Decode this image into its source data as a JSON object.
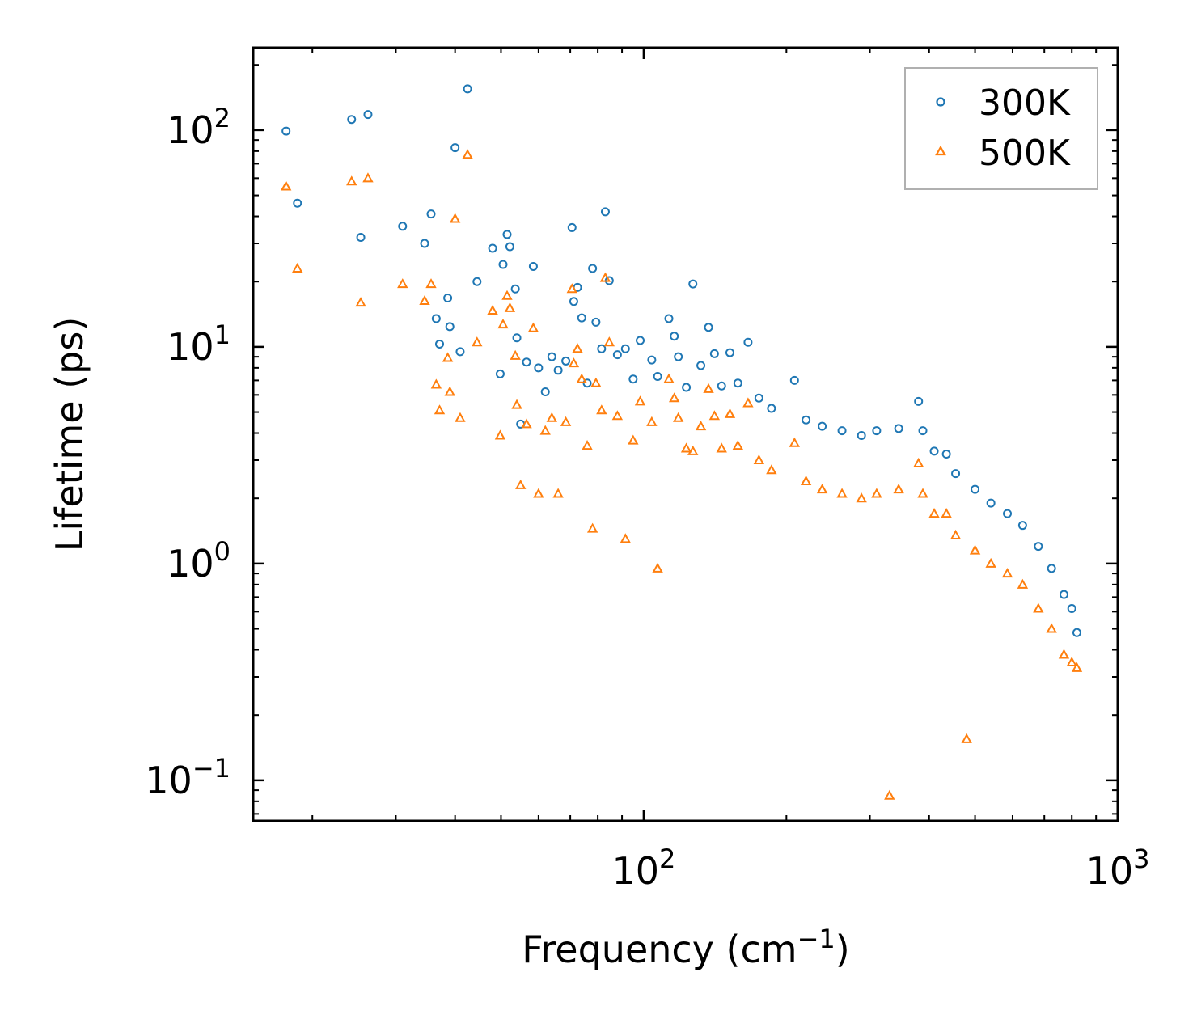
{
  "chart_data": {
    "type": "scatter",
    "title": "",
    "xlabel": "Frequency (cm",
    "xlabel_sup": "−1",
    "xlabel_end": ")",
    "ylabel": "Lifetime (ps)",
    "xscale": "log",
    "yscale": "log",
    "xlim": [
      15,
      1000
    ],
    "ylim": [
      0.065,
      240
    ],
    "x_ticks": [
      {
        "value": 100,
        "base": "10",
        "exp": "2"
      },
      {
        "value": 1000,
        "base": "10",
        "exp": "3"
      }
    ],
    "y_ticks": [
      {
        "value": 0.1,
        "base": "10",
        "exp": "−1"
      },
      {
        "value": 1,
        "base": "10",
        "exp": "0"
      },
      {
        "value": 10,
        "base": "10",
        "exp": "1"
      },
      {
        "value": 100,
        "base": "10",
        "exp": "2"
      }
    ],
    "legend_position": "top-right",
    "series": [
      {
        "name": "300K",
        "color": "#1f77b4",
        "marker": "circle",
        "points": [
          [
            17.6,
            99
          ],
          [
            18.6,
            46
          ],
          [
            24.2,
            112
          ],
          [
            25.3,
            32
          ],
          [
            26.2,
            118
          ],
          [
            31,
            36
          ],
          [
            34.5,
            30
          ],
          [
            35.6,
            41
          ],
          [
            36.5,
            13.5
          ],
          [
            37.1,
            10.3
          ],
          [
            38.6,
            16.8
          ],
          [
            39,
            12.4
          ],
          [
            40,
            83
          ],
          [
            41,
            9.5
          ],
          [
            42.5,
            155
          ],
          [
            44.5,
            20
          ],
          [
            48,
            28.5
          ],
          [
            49.8,
            7.5
          ],
          [
            50.5,
            24
          ],
          [
            51.5,
            33
          ],
          [
            52.2,
            29
          ],
          [
            53.6,
            18.5
          ],
          [
            54,
            11
          ],
          [
            55,
            4.4
          ],
          [
            56.6,
            8.5
          ],
          [
            58.5,
            23.5
          ],
          [
            60,
            8
          ],
          [
            62,
            6.2
          ],
          [
            64,
            9
          ],
          [
            66,
            7.8
          ],
          [
            68.5,
            8.6
          ],
          [
            70.6,
            35.5
          ],
          [
            71.2,
            16.2
          ],
          [
            72.5,
            18.8
          ],
          [
            74,
            13.6
          ],
          [
            76,
            6.8
          ],
          [
            78,
            23
          ],
          [
            79.3,
            13
          ],
          [
            81.5,
            9.8
          ],
          [
            83,
            42
          ],
          [
            84.6,
            20.2
          ],
          [
            88,
            9.2
          ],
          [
            91.5,
            9.8
          ],
          [
            95,
            7.1
          ],
          [
            98.3,
            10.7
          ],
          [
            104,
            8.7
          ],
          [
            107,
            7.3
          ],
          [
            113,
            13.5
          ],
          [
            116,
            11.2
          ],
          [
            118.3,
            9
          ],
          [
            123,
            6.5
          ],
          [
            127,
            19.5
          ],
          [
            132,
            8.2
          ],
          [
            137,
            12.3
          ],
          [
            141,
            9.3
          ],
          [
            146,
            6.6
          ],
          [
            152,
            9.4
          ],
          [
            158,
            6.8
          ],
          [
            166,
            10.5
          ],
          [
            175,
            5.8
          ],
          [
            186,
            5.2
          ],
          [
            208,
            7
          ],
          [
            220,
            4.6
          ],
          [
            238,
            4.3
          ],
          [
            262,
            4.1
          ],
          [
            288,
            3.9
          ],
          [
            310,
            4.1
          ],
          [
            345,
            4.2
          ],
          [
            380,
            5.6
          ],
          [
            388,
            4.1
          ],
          [
            410,
            3.3
          ],
          [
            435,
            3.2
          ],
          [
            455,
            2.6
          ],
          [
            500,
            2.2
          ],
          [
            540,
            1.9
          ],
          [
            585,
            1.7
          ],
          [
            630,
            1.5
          ],
          [
            680,
            1.2
          ],
          [
            725,
            0.95
          ],
          [
            770,
            0.72
          ],
          [
            800,
            0.62
          ],
          [
            820,
            0.48
          ]
        ]
      },
      {
        "name": "500K",
        "color": "#ff7f0e",
        "marker": "triangle",
        "points": [
          [
            17.6,
            55
          ],
          [
            18.6,
            23
          ],
          [
            24.2,
            58
          ],
          [
            25.3,
            16
          ],
          [
            26.2,
            60
          ],
          [
            31,
            19.5
          ],
          [
            34.5,
            16.3
          ],
          [
            35.6,
            19.5
          ],
          [
            36.5,
            6.7
          ],
          [
            37.1,
            5.1
          ],
          [
            38.6,
            8.9
          ],
          [
            39,
            6.2
          ],
          [
            40,
            39
          ],
          [
            41,
            4.7
          ],
          [
            42.5,
            77
          ],
          [
            44.5,
            10.5
          ],
          [
            48,
            14.7
          ],
          [
            49.8,
            3.9
          ],
          [
            50.5,
            12.7
          ],
          [
            51.5,
            17.2
          ],
          [
            52.2,
            15.1
          ],
          [
            53.6,
            9.1
          ],
          [
            54,
            5.4
          ],
          [
            55,
            2.3
          ],
          [
            56.6,
            4.4
          ],
          [
            58.5,
            12.2
          ],
          [
            60,
            2.1
          ],
          [
            62,
            4.1
          ],
          [
            64,
            4.7
          ],
          [
            66,
            2.1
          ],
          [
            68.5,
            4.5
          ],
          [
            70.6,
            18.5
          ],
          [
            71.2,
            8.4
          ],
          [
            72.5,
            9.8
          ],
          [
            74,
            7.1
          ],
          [
            76,
            3.5
          ],
          [
            78,
            1.45
          ],
          [
            79.3,
            6.8
          ],
          [
            81.5,
            5.1
          ],
          [
            83,
            20.8
          ],
          [
            84.6,
            10.5
          ],
          [
            88,
            4.8
          ],
          [
            91.5,
            1.3
          ],
          [
            95,
            3.7
          ],
          [
            98.3,
            5.6
          ],
          [
            104,
            4.5
          ],
          [
            107,
            0.95
          ],
          [
            113,
            7.1
          ],
          [
            116,
            5.8
          ],
          [
            118.3,
            4.7
          ],
          [
            123,
            3.4
          ],
          [
            127,
            3.3
          ],
          [
            132,
            4.3
          ],
          [
            137,
            6.4
          ],
          [
            141,
            4.8
          ],
          [
            146,
            3.4
          ],
          [
            152,
            4.9
          ],
          [
            158,
            3.5
          ],
          [
            166,
            5.5
          ],
          [
            175,
            3
          ],
          [
            186,
            2.7
          ],
          [
            208,
            3.6
          ],
          [
            220,
            2.4
          ],
          [
            238,
            2.2
          ],
          [
            262,
            2.1
          ],
          [
            288,
            2
          ],
          [
            310,
            2.1
          ],
          [
            345,
            2.2
          ],
          [
            380,
            2.9
          ],
          [
            388,
            2.1
          ],
          [
            410,
            1.7
          ],
          [
            435,
            1.7
          ],
          [
            455,
            1.35
          ],
          [
            500,
            1.15
          ],
          [
            540,
            1
          ],
          [
            585,
            0.9
          ],
          [
            630,
            0.8
          ],
          [
            680,
            0.62
          ],
          [
            725,
            0.5
          ],
          [
            770,
            0.38
          ],
          [
            800,
            0.35
          ],
          [
            820,
            0.33
          ],
          [
            330,
            0.085
          ],
          [
            480,
            0.155
          ]
        ]
      }
    ]
  }
}
